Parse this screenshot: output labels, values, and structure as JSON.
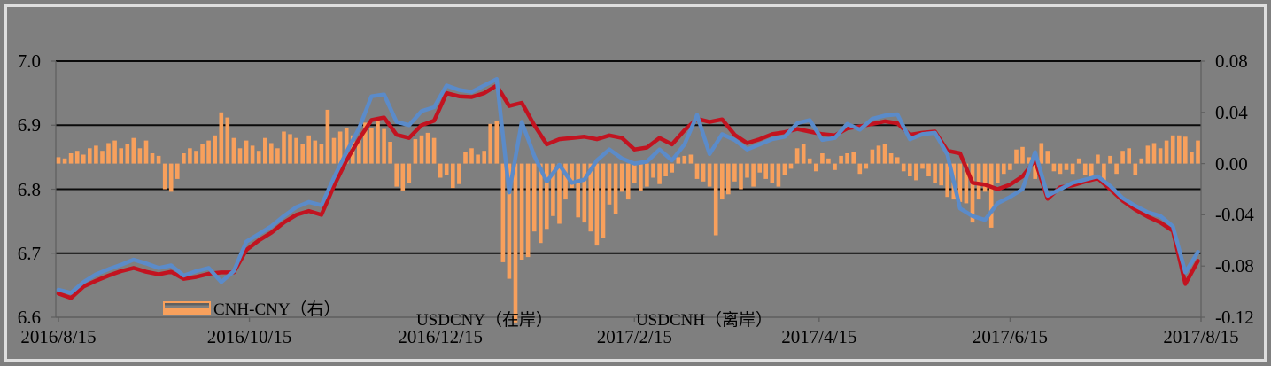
{
  "chart_data": {
    "type": "combo",
    "description": "Dual-axis chart: USDCNY onshore and USDCNH offshore exchange-rate lines (left axis) with CNH-CNY spread bars (right axis)",
    "x_axis": {
      "tick_labels": [
        "2016/8/15",
        "2016/10/15",
        "2016/12/15",
        "2017/2/15",
        "2017/4/15",
        "2017/6/15",
        "2017/8/15"
      ],
      "tick_days": [
        0,
        61,
        122,
        184,
        243,
        304,
        365
      ],
      "total_days": 365
    },
    "left_axis": {
      "tick_labels": [
        "7.0",
        "6.9",
        "6.8",
        "6.7",
        "6.6"
      ],
      "tick_values": [
        7.0,
        6.9,
        6.8,
        6.7,
        6.6
      ],
      "min": 6.6,
      "max": 7.0,
      "gridline_values": [
        7.0,
        6.9,
        6.8,
        6.7
      ]
    },
    "right_axis": {
      "tick_labels": [
        "0.08",
        "0.04",
        "0.00",
        "-0.04",
        "-0.08",
        "-0.12"
      ],
      "tick_values": [
        0.08,
        0.04,
        0.0,
        -0.04,
        -0.08,
        -0.12
      ],
      "min": -0.12,
      "max": 0.08
    },
    "legend_position": "bottom-inside",
    "grid": true,
    "series": [
      {
        "name": "CNH-CNY（右）",
        "type": "bar",
        "axis": "right",
        "color": "#f8a05c",
        "step_days": 2,
        "values": [
          0.005,
          0.004,
          0.008,
          0.01,
          0.007,
          0.012,
          0.014,
          0.01,
          0.016,
          0.018,
          0.012,
          0.015,
          0.02,
          0.012,
          0.018,
          0.008,
          0.006,
          -0.02,
          -0.022,
          -0.012,
          0.008,
          0.012,
          0.01,
          0.015,
          0.018,
          0.022,
          0.04,
          0.036,
          0.02,
          0.012,
          0.018,
          0.014,
          0.01,
          0.02,
          0.016,
          0.012,
          0.025,
          0.023,
          0.02,
          0.015,
          0.022,
          0.018,
          0.015,
          0.042,
          0.02,
          0.025,
          0.028,
          0.022,
          0.018,
          0.032,
          0.028,
          0.035,
          0.027,
          0.017,
          -0.018,
          -0.021,
          -0.015,
          0.019,
          0.022,
          0.024,
          0.02,
          -0.011,
          -0.009,
          -0.019,
          -0.016,
          0.009,
          0.012,
          0.007,
          0.01,
          0.031,
          0.033,
          -0.077,
          -0.09,
          -0.124,
          -0.075,
          -0.073,
          -0.053,
          -0.062,
          -0.051,
          -0.041,
          -0.047,
          -0.028,
          -0.019,
          -0.042,
          -0.046,
          -0.053,
          -0.064,
          -0.058,
          -0.032,
          -0.039,
          -0.022,
          -0.028,
          -0.015,
          -0.021,
          -0.018,
          -0.011,
          -0.016,
          -0.01,
          -0.007,
          0.005,
          0.006,
          0.007,
          -0.012,
          -0.014,
          -0.018,
          -0.056,
          -0.028,
          -0.024,
          -0.014,
          -0.02,
          -0.011,
          -0.018,
          -0.007,
          -0.012,
          -0.015,
          -0.018,
          -0.009,
          -0.004,
          0.012,
          0.015,
          0.004,
          -0.006,
          0.008,
          0.004,
          -0.005,
          0.006,
          0.008,
          0.009,
          -0.008,
          -0.004,
          0.011,
          0.014,
          0.015,
          0.008,
          0.005,
          -0.006,
          -0.01,
          -0.013,
          -0.004,
          -0.01,
          -0.015,
          -0.017,
          -0.026,
          -0.028,
          -0.03,
          -0.031,
          -0.046,
          -0.028,
          -0.022,
          -0.05,
          -0.015,
          -0.008,
          -0.005,
          0.011,
          0.013,
          0.005,
          -0.012,
          0.016,
          0.01,
          -0.006,
          -0.008,
          -0.005,
          -0.008,
          0.004,
          -0.009,
          -0.013,
          0.007,
          -0.014,
          0.006,
          -0.008,
          0.01,
          0.012,
          -0.009,
          0.004,
          0.014,
          0.016,
          0.012,
          0.018,
          0.022,
          0.022,
          0.021,
          0.009,
          0.018
        ]
      },
      {
        "name": "USDCNY（在岸）",
        "type": "line",
        "axis": "left",
        "color": "#c21320",
        "step_days": 4,
        "values": [
          6.637,
          6.63,
          6.648,
          6.657,
          6.665,
          6.672,
          6.677,
          6.671,
          6.667,
          6.671,
          6.66,
          6.663,
          6.668,
          6.67,
          6.67,
          6.705,
          6.72,
          6.732,
          6.748,
          6.76,
          6.766,
          6.76,
          6.805,
          6.845,
          6.878,
          6.908,
          6.912,
          6.885,
          6.88,
          6.9,
          6.907,
          6.95,
          6.945,
          6.944,
          6.95,
          6.962,
          6.93,
          6.935,
          6.9,
          6.87,
          6.878,
          6.88,
          6.882,
          6.878,
          6.884,
          6.88,
          6.862,
          6.865,
          6.88,
          6.87,
          6.892,
          6.91,
          6.905,
          6.909,
          6.885,
          6.872,
          6.878,
          6.886,
          6.889,
          6.894,
          6.89,
          6.886,
          6.884,
          6.895,
          6.898,
          6.902,
          6.906,
          6.903,
          6.885,
          6.888,
          6.89,
          6.86,
          6.856,
          6.81,
          6.807,
          6.8,
          6.807,
          6.82,
          6.845,
          6.785,
          6.803,
          6.806,
          6.812,
          6.817,
          6.8,
          6.782,
          6.768,
          6.757,
          6.748,
          6.735,
          6.652,
          6.688
        ]
      },
      {
        "name": "USDCNH（离岸）",
        "type": "line",
        "axis": "left",
        "color": "#5b8bc9",
        "step_days": 4,
        "values": [
          6.643,
          6.638,
          6.655,
          6.667,
          6.675,
          6.682,
          6.69,
          6.684,
          6.677,
          6.681,
          6.665,
          6.672,
          6.677,
          6.655,
          6.672,
          6.718,
          6.73,
          6.742,
          6.758,
          6.772,
          6.78,
          6.775,
          6.818,
          6.858,
          6.895,
          6.945,
          6.948,
          6.905,
          6.9,
          6.922,
          6.928,
          6.962,
          6.955,
          6.952,
          6.962,
          6.972,
          6.795,
          6.905,
          6.852,
          6.812,
          6.838,
          6.81,
          6.815,
          6.845,
          6.862,
          6.848,
          6.84,
          6.843,
          6.862,
          6.845,
          6.87,
          6.916,
          6.855,
          6.886,
          6.877,
          6.862,
          6.87,
          6.878,
          6.882,
          6.903,
          6.908,
          6.877,
          6.88,
          6.902,
          6.893,
          6.91,
          6.915,
          6.917,
          6.878,
          6.886,
          6.888,
          6.854,
          6.77,
          6.758,
          6.752,
          6.778,
          6.788,
          6.8,
          6.858,
          6.79,
          6.8,
          6.81,
          6.815,
          6.82,
          6.805,
          6.786,
          6.774,
          6.764,
          6.758,
          6.742,
          6.67,
          6.702
        ]
      }
    ]
  },
  "canvas": {
    "background": "#7f7f7f",
    "frame_color": "#dedede",
    "gridline_color": "#0a0a0a",
    "axis_line_color": "#5e5e5e",
    "text_color": "#000000"
  }
}
